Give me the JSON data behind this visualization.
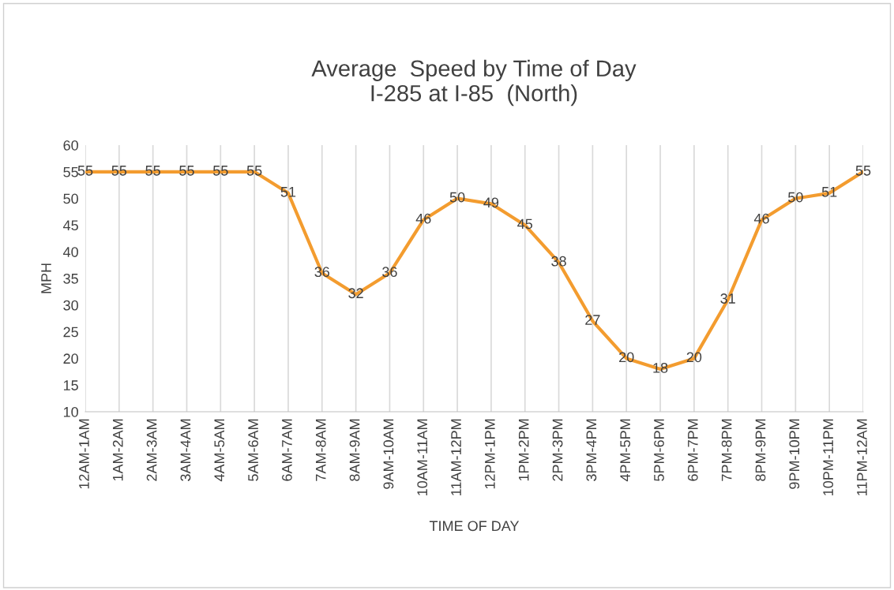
{
  "chart_data": {
    "type": "line",
    "title": "Average  Speed by Time of Day\nI-285 at I-85  (North)",
    "xlabel": "TIME OF DAY",
    "ylabel": "MPH",
    "categories": [
      "12AM-1AM",
      "1AM-2AM",
      "2AM-3AM",
      "3AM-4AM",
      "4AM-5AM",
      "5AM-6AM",
      "6AM-7AM",
      "7AM-8AM",
      "8AM-9AM",
      "9AM-10AM",
      "10AM-11AM",
      "11AM-12PM",
      "12PM-1PM",
      "1PM-2PM",
      "2PM-3PM",
      "3PM-4PM",
      "4PM-5PM",
      "5PM-6PM",
      "6PM-7PM",
      "7PM-8PM",
      "8PM-9PM",
      "9PM-10PM",
      "10PM-11PM",
      "11PM-12AM"
    ],
    "series": [
      {
        "color": "#f39c2f",
        "values": [
          55,
          55,
          55,
          55,
          55,
          55,
          51,
          36,
          32,
          36,
          46,
          50,
          49,
          45,
          38,
          27,
          20,
          18,
          20,
          31,
          46,
          50,
          51,
          55
        ]
      }
    ],
    "ylim": [
      10,
      60
    ],
    "yticks": [
      10,
      15,
      20,
      25,
      30,
      35,
      40,
      45,
      50,
      55,
      60
    ],
    "grid": "x",
    "marker": "none",
    "line_style": "solid",
    "data_labels": true
  }
}
